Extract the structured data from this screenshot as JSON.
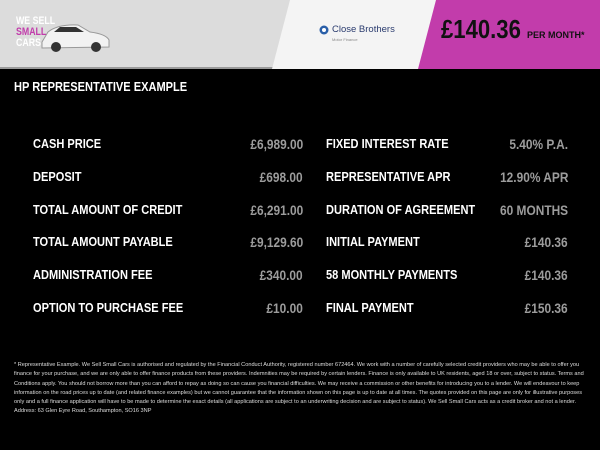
{
  "header": {
    "logo": {
      "line1": "WE SELL",
      "line2": "SMALL",
      "line3": "CARS"
    },
    "lender": {
      "name": "Close Brothers",
      "sub": "Motor Finance"
    },
    "price": "£140.36",
    "per_month": "PER MONTH*",
    "colors": {
      "accent": "#c23cab",
      "gray": "#dcdcdc"
    }
  },
  "title": "HP REPRESENTATIVE EXAMPLE",
  "left_rows": [
    {
      "label": "CASH PRICE",
      "value": "£6,989.00"
    },
    {
      "label": "DEPOSIT",
      "value": "£698.00"
    },
    {
      "label": "TOTAL AMOUNT OF CREDIT",
      "value": "£6,291.00"
    },
    {
      "label": "TOTAL AMOUNT PAYABLE",
      "value": "£9,129.60"
    },
    {
      "label": "ADMINISTRATION FEE",
      "value": "£340.00"
    },
    {
      "label": "OPTION TO PURCHASE FEE",
      "value": "£10.00"
    }
  ],
  "right_rows": [
    {
      "label": "FIXED INTEREST RATE",
      "value": "5.40% P.A."
    },
    {
      "label": "REPRESENTATIVE APR",
      "value": "12.90% APR"
    },
    {
      "label": "DURATION OF AGREEMENT",
      "value": "60 MONTHS"
    },
    {
      "label": "INITIAL PAYMENT",
      "value": "£140.36"
    },
    {
      "label": "58 MONTHLY PAYMENTS",
      "value": "£140.36"
    },
    {
      "label": "FINAL PAYMENT",
      "value": "£150.36"
    }
  ],
  "footer": "* Representative Example. We Sell Small Cars is authorised and regulated by the Financial Conduct Authority, registered number 672464. We work with a number of carefully selected credit providers who may be able to offer you finance for your purchase, and we are only able to offer finance products from these providers. Indemnities may be required by certain lenders. Finance is only available to UK residents, aged 18 or over, subject to status. Terms and Conditions apply. You should not borrow more than you can afford to repay as doing so can cause you financial difficulties. We may receive a commission or other benefits for introducing you to a lender. We will endeavour to keep information on the road prices up to date (and related finance examples) but we cannot guarantee that the information shown on this page is up to date at all times. The quotes provided on this page are only for illustrative purposes only and a full finance application will have to be made to determine the exact details (all applications are subject to an underwriting decision and are subject to status). We Sell Small Cars acts as a credit broker and not a lender. Address: 63 Glen Eyre Road, Southampton, SO16 3NP"
}
